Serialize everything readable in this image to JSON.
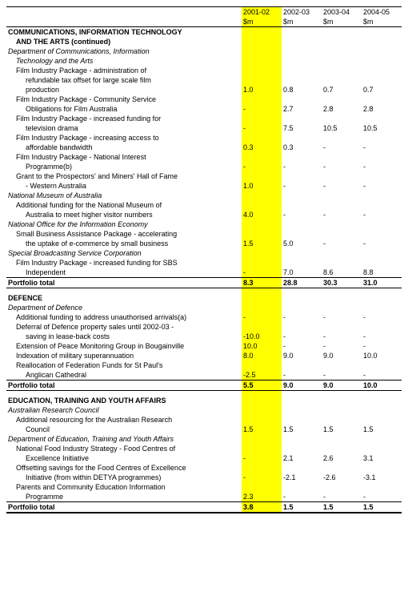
{
  "columns": {
    "years": [
      "2001-02",
      "2002-03",
      "2003-04",
      "2004-05"
    ],
    "unit": "$m"
  },
  "highlight_color": "#ffff00",
  "sections": {
    "comms": {
      "title_line1": "COMMUNICATIONS, INFORMATION TECHNOLOGY",
      "title_line2": "AND THE ARTS (continued)",
      "dept1": {
        "name_l1": "Department of Communications, Information",
        "name_l2": "Technology and the Arts",
        "items": {
          "r1": {
            "l1": "Film Industry Package - administration of",
            "l2": "refundable tax offset for large scale film",
            "l3": "production",
            "v": [
              "1.0",
              "0.8",
              "0.7",
              "0.7"
            ]
          },
          "r2": {
            "l1": "Film Industry Package - Community Service",
            "l2": "Obligations for Film Australia",
            "v": [
              "-",
              "2.7",
              "2.8",
              "2.8"
            ]
          },
          "r3": {
            "l1": "Film Industry Package - increased funding for",
            "l2": "television drama",
            "v": [
              "-",
              "7.5",
              "10.5",
              "10.5"
            ]
          },
          "r4": {
            "l1": "Film Industry Package - increasing access to",
            "l2": "affordable bandwidth",
            "v": [
              "0.3",
              "0.3",
              "-",
              "-"
            ]
          },
          "r5": {
            "l1": "Film Industry Package - National Interest",
            "l2": "Programme(b)",
            "v": [
              "-",
              "-",
              "-",
              "-"
            ]
          },
          "r6": {
            "l1": "Grant to the Prospectors' and Miners' Hall of Fame",
            "l2": "- Western Australia",
            "v": [
              "1.0",
              "-",
              "-",
              "-"
            ]
          }
        }
      },
      "dept2": {
        "name": "National Museum of Australia",
        "r1": {
          "l1": "Additional funding for the National Museum of",
          "l2": "Australia to meet higher visitor numbers",
          "v": [
            "4.0",
            "-",
            "-",
            "-"
          ]
        }
      },
      "dept3": {
        "name": "National Office for the Information Economy",
        "r1": {
          "l1": "Small Business Assistance Package - accelerating",
          "l2": "the uptake of e-commerce by small business",
          "v": [
            "1.5",
            "5.0",
            "-",
            "-"
          ]
        }
      },
      "dept4": {
        "name": "Special Broadcasting Service Corporation",
        "r1": {
          "l1": "Film Industry Package - increased funding for SBS",
          "l2": "Independent",
          "v": [
            "-",
            "7.0",
            "8.6",
            "8.8"
          ]
        }
      },
      "total": {
        "label": "Portfolio total",
        "v": [
          "8.3",
          "28.8",
          "30.3",
          "31.0"
        ]
      }
    },
    "defence": {
      "title": "DEFENCE",
      "dept": {
        "name": "Department of Defence",
        "r1": {
          "l": "Additional funding to address unauthorised arrivals(a)",
          "v": [
            "-",
            "-",
            "-",
            "-"
          ]
        },
        "r2": {
          "l1": "Deferral of Defence property sales until 2002-03 -",
          "l2": "saving in lease-back costs",
          "v": [
            "-10.0",
            "-",
            "-",
            "-"
          ]
        },
        "r3": {
          "l": "Extension of Peace Monitoring Group in Bougainville",
          "v": [
            "10.0",
            "-",
            "-",
            "-"
          ]
        },
        "r4": {
          "l": "Indexation of military superannuation",
          "v": [
            "8.0",
            "9.0",
            "9.0",
            "10.0"
          ]
        },
        "r5": {
          "l1": "Reallocation of Federation Funds for St Paul's",
          "l2": "Anglican Cathedral",
          "v": [
            "-2.5",
            "-",
            "-",
            "-"
          ]
        }
      },
      "total": {
        "label": "Portfolio total",
        "v": [
          "5.5",
          "9.0",
          "9.0",
          "10.0"
        ]
      }
    },
    "education": {
      "title": "EDUCATION, TRAINING AND YOUTH AFFAIRS",
      "dept1": {
        "name": "Australian Research Council",
        "r1": {
          "l1": "Additional resourcing for the Australian Research",
          "l2": "Council",
          "v": [
            "1.5",
            "1.5",
            "1.5",
            "1.5"
          ]
        }
      },
      "dept2": {
        "name": "Department of Education, Training and Youth Affairs",
        "r1": {
          "l1": "National Food Industry Strategy - Food Centres of",
          "l2": "Excellence Initiative",
          "v": [
            "-",
            "2.1",
            "2.6",
            "3.1"
          ]
        },
        "r2": {
          "l1": "Offsetting savings for the Food Centres of Excellence",
          "l2": "Initiative (from within DETYA programmes)",
          "v": [
            "-",
            "-2.1",
            "-2.6",
            "-3.1"
          ]
        },
        "r3": {
          "l1": "Parents and Community Education Information",
          "l2": "Programme",
          "v": [
            "2.3",
            "-",
            "-",
            "-"
          ]
        }
      },
      "total": {
        "label": "Portfolio total",
        "v": [
          "3.8",
          "1.5",
          "1.5",
          "1.5"
        ]
      }
    }
  }
}
